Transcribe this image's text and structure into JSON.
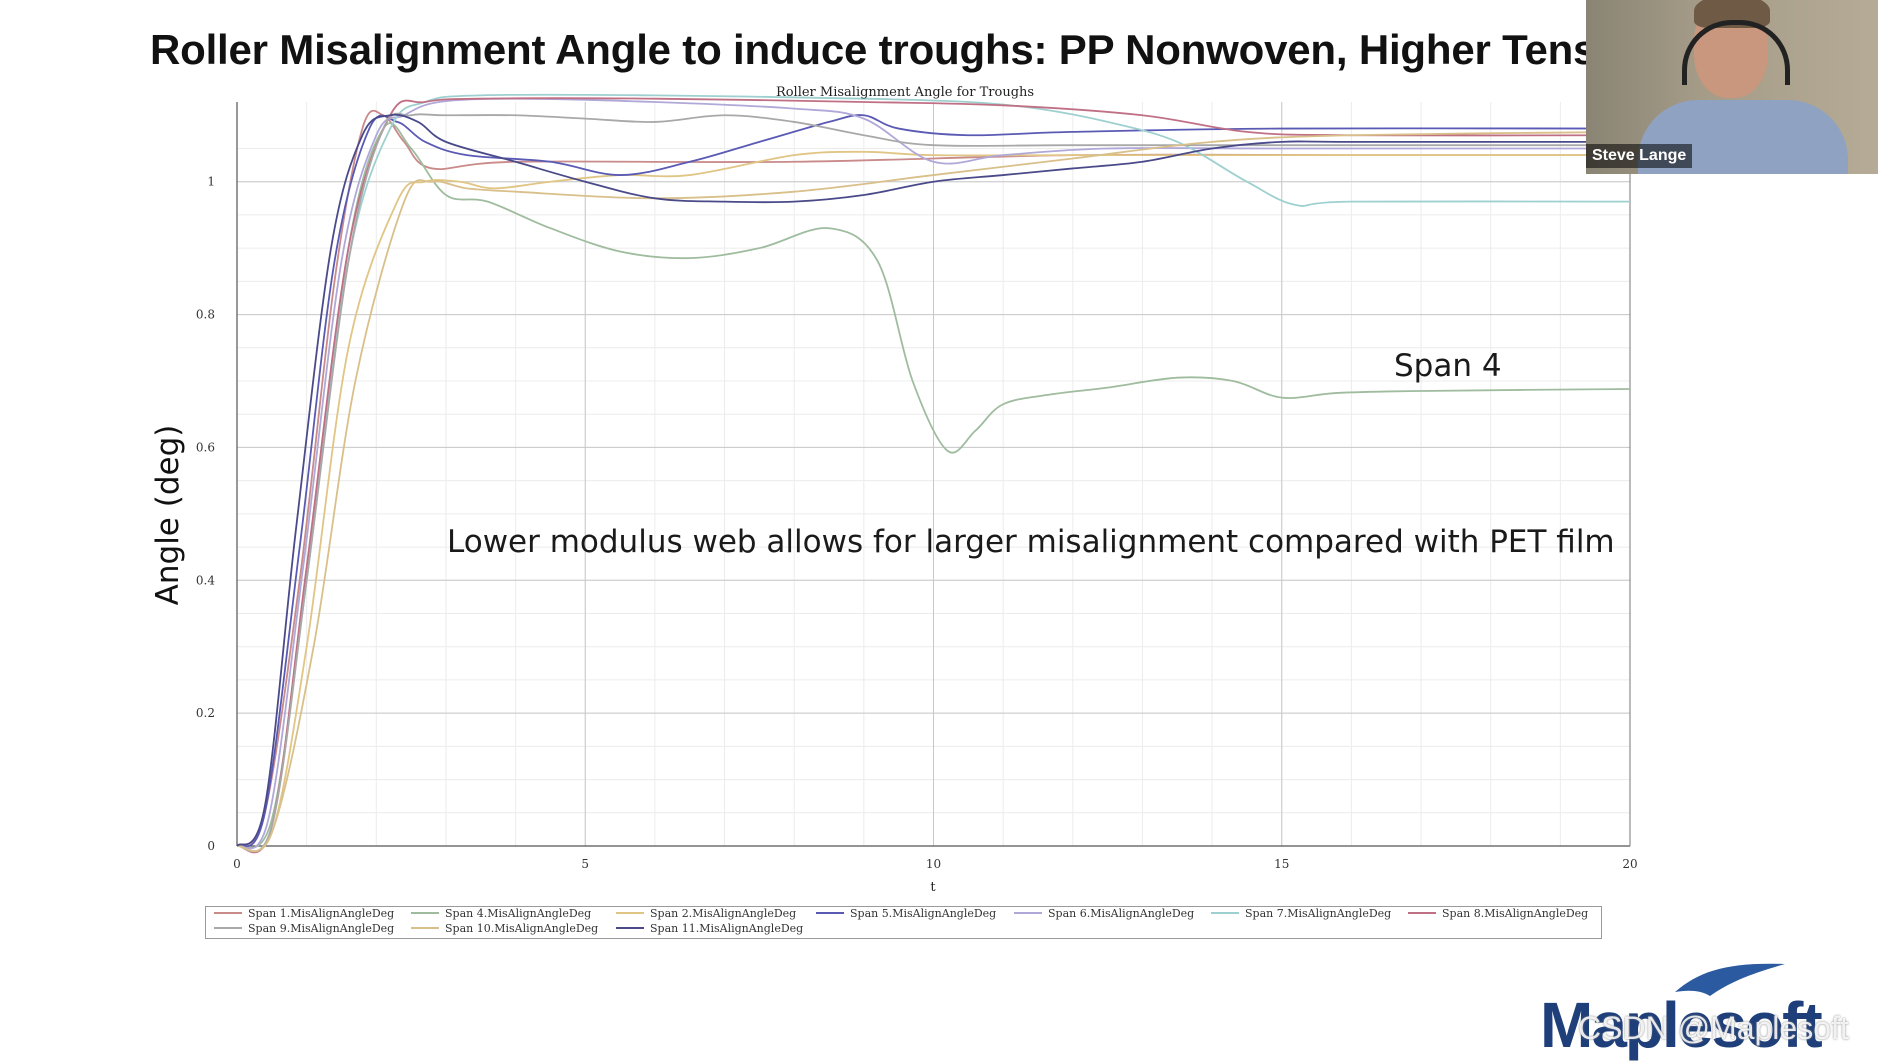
{
  "slide": {
    "title": "Roller Misalignment Angle to induce troughs: PP Nonwoven, Higher Tens",
    "annotation_span": "Span 4",
    "annotation_note": "Lower modulus web allows for larger misalignment compared with PET film"
  },
  "video": {
    "name": "Steve Lange"
  },
  "branding": {
    "logo_text": "Maplesoft",
    "watermark": "CSDN @Maplesoft"
  },
  "chart_data": {
    "type": "line",
    "title": "Roller Misalignment Angle for Troughs",
    "xlabel": "t",
    "ylabel": "Angle (deg)",
    "xlim": [
      0,
      20
    ],
    "ylim": [
      0,
      1.12
    ],
    "xticks": [
      0,
      5,
      10,
      15,
      20
    ],
    "yticks": [
      0,
      0.2,
      0.4,
      0.6,
      0.8,
      1
    ],
    "grid": true,
    "legend_position": "bottom",
    "series": [
      {
        "name": "Span 1.MisAlignAngleDeg",
        "color": "#c98a8a",
        "points": [
          [
            0,
            0
          ],
          [
            0.4,
            0.05
          ],
          [
            0.9,
            0.4
          ],
          [
            1.4,
            0.85
          ],
          [
            1.8,
            1.08
          ],
          [
            2.1,
            1.1
          ],
          [
            2.4,
            1.06
          ],
          [
            2.8,
            1.02
          ],
          [
            4,
            1.03
          ],
          [
            8,
            1.03
          ],
          [
            12,
            1.04
          ],
          [
            16,
            1.04
          ],
          [
            20,
            1.04
          ]
        ]
      },
      {
        "name": "Span 4.MisAlignAngleDeg",
        "color": "#9fbc9f",
        "points": [
          [
            0,
            0
          ],
          [
            0.5,
            0.04
          ],
          [
            1,
            0.4
          ],
          [
            1.6,
            0.9
          ],
          [
            2.1,
            1.08
          ],
          [
            2.5,
            1.05
          ],
          [
            3,
            0.98
          ],
          [
            3.6,
            0.97
          ],
          [
            4.5,
            0.93
          ],
          [
            5.5,
            0.895
          ],
          [
            6.5,
            0.885
          ],
          [
            7.5,
            0.9
          ],
          [
            8.5,
            0.93
          ],
          [
            9.2,
            0.88
          ],
          [
            9.7,
            0.7
          ],
          [
            10.2,
            0.595
          ],
          [
            10.6,
            0.625
          ],
          [
            11,
            0.665
          ],
          [
            11.7,
            0.68
          ],
          [
            12.5,
            0.69
          ],
          [
            13.5,
            0.705
          ],
          [
            14.3,
            0.7
          ],
          [
            15,
            0.675
          ],
          [
            15.8,
            0.682
          ],
          [
            17,
            0.685
          ],
          [
            20,
            0.688
          ]
        ]
      },
      {
        "name": "Span 2.MisAlignAngleDeg",
        "color": "#e0c585",
        "points": [
          [
            0,
            0
          ],
          [
            0.5,
            0.02
          ],
          [
            1,
            0.3
          ],
          [
            1.6,
            0.75
          ],
          [
            2.3,
            0.97
          ],
          [
            2.7,
            1.0
          ],
          [
            3.2,
            1.0
          ],
          [
            3.7,
            0.99
          ],
          [
            4.5,
            1.0
          ],
          [
            5.5,
            1.01
          ],
          [
            6.5,
            1.01
          ],
          [
            8,
            1.04
          ],
          [
            9,
            1.045
          ],
          [
            10,
            1.04
          ],
          [
            12,
            1.04
          ],
          [
            14,
            1.04
          ],
          [
            16,
            1.04
          ],
          [
            20,
            1.04
          ]
        ]
      },
      {
        "name": "Span 5.MisAlignAngleDeg",
        "color": "#5a5ab5",
        "points": [
          [
            0,
            0
          ],
          [
            0.4,
            0.05
          ],
          [
            0.9,
            0.45
          ],
          [
            1.4,
            0.88
          ],
          [
            1.9,
            1.08
          ],
          [
            2.3,
            1.09
          ],
          [
            2.7,
            1.06
          ],
          [
            3.3,
            1.04
          ],
          [
            4.5,
            1.03
          ],
          [
            5.5,
            1.01
          ],
          [
            6.5,
            1.03
          ],
          [
            7.5,
            1.06
          ],
          [
            8.5,
            1.09
          ],
          [
            9,
            1.1
          ],
          [
            9.5,
            1.08
          ],
          [
            10.5,
            1.07
          ],
          [
            12,
            1.075
          ],
          [
            15,
            1.08
          ],
          [
            20,
            1.08
          ]
        ]
      },
      {
        "name": "Span 6.MisAlignAngleDeg",
        "color": "#b0a8d8",
        "points": [
          [
            0,
            0
          ],
          [
            0.45,
            0.04
          ],
          [
            0.95,
            0.42
          ],
          [
            1.5,
            0.88
          ],
          [
            2,
            1.07
          ],
          [
            2.4,
            1.1
          ],
          [
            2.9,
            1.12
          ],
          [
            4,
            1.125
          ],
          [
            6,
            1.12
          ],
          [
            8,
            1.11
          ],
          [
            9,
            1.095
          ],
          [
            10,
            1.03
          ],
          [
            11,
            1.04
          ],
          [
            12.5,
            1.05
          ],
          [
            15,
            1.05
          ],
          [
            20,
            1.05
          ]
        ]
      },
      {
        "name": "Span 7.MisAlignAngleDeg",
        "color": "#9fd0d0",
        "points": [
          [
            0,
            0
          ],
          [
            0.5,
            0.03
          ],
          [
            1,
            0.4
          ],
          [
            1.6,
            0.88
          ],
          [
            2.2,
            1.08
          ],
          [
            2.7,
            1.12
          ],
          [
            3.5,
            1.13
          ],
          [
            6,
            1.13
          ],
          [
            9,
            1.125
          ],
          [
            10.5,
            1.12
          ],
          [
            11.5,
            1.11
          ],
          [
            12.5,
            1.09
          ],
          [
            13.5,
            1.06
          ],
          [
            14.5,
            1.0
          ],
          [
            15.2,
            0.965
          ],
          [
            16,
            0.97
          ],
          [
            20,
            0.97
          ]
        ]
      },
      {
        "name": "Span 8.MisAlignAngleDeg",
        "color": "#c07085",
        "points": [
          [
            0,
            0
          ],
          [
            0.5,
            0.03
          ],
          [
            1,
            0.42
          ],
          [
            1.6,
            0.9
          ],
          [
            2.2,
            1.1
          ],
          [
            2.7,
            1.12
          ],
          [
            3.5,
            1.125
          ],
          [
            6,
            1.125
          ],
          [
            9,
            1.12
          ],
          [
            11,
            1.115
          ],
          [
            13,
            1.1
          ],
          [
            14.5,
            1.075
          ],
          [
            16,
            1.07
          ],
          [
            20,
            1.07
          ]
        ]
      },
      {
        "name": "Span 9.MisAlignAngleDeg",
        "color": "#a8a8a8",
        "points": [
          [
            0,
            0
          ],
          [
            0.5,
            0.03
          ],
          [
            1,
            0.4
          ],
          [
            1.6,
            0.88
          ],
          [
            2.1,
            1.08
          ],
          [
            2.5,
            1.1
          ],
          [
            3,
            1.1
          ],
          [
            4,
            1.1
          ],
          [
            5,
            1.095
          ],
          [
            6,
            1.09
          ],
          [
            7,
            1.1
          ],
          [
            8,
            1.09
          ],
          [
            9,
            1.07
          ],
          [
            10,
            1.055
          ],
          [
            12,
            1.055
          ],
          [
            15,
            1.055
          ],
          [
            20,
            1.055
          ]
        ]
      },
      {
        "name": "Span 10.MisAlignAngleDeg",
        "color": "#d9c08a",
        "points": [
          [
            0,
            0
          ],
          [
            0.5,
            0.02
          ],
          [
            1.1,
            0.3
          ],
          [
            1.7,
            0.7
          ],
          [
            2.4,
            0.97
          ],
          [
            2.8,
            1.0
          ],
          [
            3.3,
            0.99
          ],
          [
            4,
            0.985
          ],
          [
            6,
            0.975
          ],
          [
            8,
            0.985
          ],
          [
            10,
            1.01
          ],
          [
            12,
            1.035
          ],
          [
            14,
            1.06
          ],
          [
            16,
            1.07
          ],
          [
            20,
            1.075
          ]
        ]
      },
      {
        "name": "Span 11.MisAlignAngleDeg",
        "color": "#4a4a8a",
        "points": [
          [
            0,
            0
          ],
          [
            0.4,
            0.06
          ],
          [
            0.85,
            0.48
          ],
          [
            1.35,
            0.9
          ],
          [
            1.8,
            1.07
          ],
          [
            2.2,
            1.1
          ],
          [
            2.6,
            1.09
          ],
          [
            3,
            1.06
          ],
          [
            4,
            1.03
          ],
          [
            5,
            1.0
          ],
          [
            6,
            0.975
          ],
          [
            7,
            0.97
          ],
          [
            8,
            0.97
          ],
          [
            9,
            0.98
          ],
          [
            10,
            1.0
          ],
          [
            11,
            1.01
          ],
          [
            12,
            1.02
          ],
          [
            13,
            1.03
          ],
          [
            14,
            1.05
          ],
          [
            15,
            1.06
          ],
          [
            16,
            1.06
          ],
          [
            20,
            1.06
          ]
        ]
      }
    ]
  }
}
